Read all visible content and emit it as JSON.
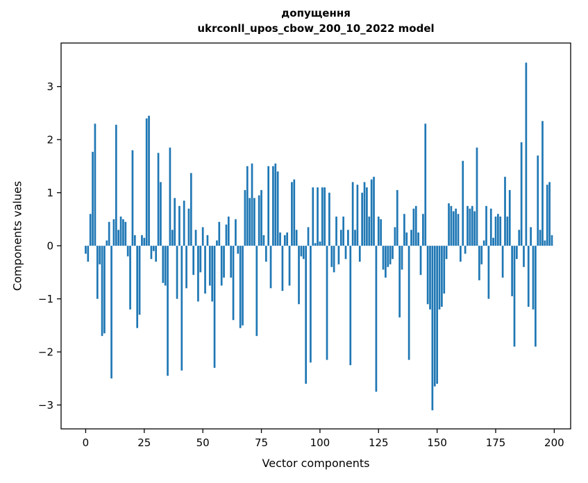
{
  "chart_data": {
    "type": "bar",
    "title": "допущення\nukrconll_upos_cbow_200_10_2022 model",
    "title_line1": "допущення",
    "title_line2": "ukrconll_upos_cbow_200_10_2022 model",
    "xlabel": "Vector components",
    "ylabel": "Components values",
    "bar_color": "#1f77b4",
    "axis_color": "#000000",
    "background_color": "#ffffff",
    "legend": "none",
    "grid": false,
    "xlim": [
      -10.5,
      207
    ],
    "ylim": [
      -3.45,
      3.82
    ],
    "xticks": [
      0,
      25,
      50,
      75,
      100,
      125,
      150,
      175,
      200
    ],
    "yticks": [
      -3,
      -2,
      -1,
      0,
      1,
      2,
      3
    ],
    "yticklabels": [
      "−3",
      "−2",
      "−1",
      "0",
      "1",
      "2",
      "3"
    ],
    "x_start": 0,
    "bar_width": 0.8,
    "values": [
      -0.15,
      -0.3,
      0.6,
      1.77,
      2.3,
      -1.0,
      -0.35,
      -1.7,
      -1.65,
      0.1,
      0.45,
      -2.5,
      0.5,
      2.28,
      0.3,
      0.55,
      0.5,
      0.45,
      -0.2,
      -1.2,
      1.8,
      0.2,
      -1.55,
      -1.3,
      0.2,
      0.15,
      2.4,
      2.45,
      -0.25,
      -0.1,
      -0.3,
      1.75,
      1.2,
      -0.7,
      -0.75,
      -2.45,
      1.85,
      0.3,
      0.9,
      -1.0,
      0.75,
      -2.35,
      0.85,
      -0.8,
      0.7,
      1.37,
      -0.55,
      0.3,
      -1.05,
      -0.5,
      0.35,
      -0.9,
      0.2,
      -0.75,
      -1.05,
      -2.3,
      0.1,
      0.45,
      -0.75,
      -0.6,
      0.4,
      0.55,
      -0.6,
      -1.4,
      0.5,
      -0.15,
      -1.55,
      -1.5,
      1.05,
      1.5,
      0.9,
      1.55,
      0.9,
      -1.7,
      0.95,
      1.05,
      0.2,
      -0.3,
      1.5,
      -0.8,
      1.5,
      1.55,
      1.4,
      0.25,
      -0.85,
      0.2,
      0.25,
      -0.75,
      1.2,
      1.25,
      0.3,
      -1.1,
      -0.2,
      -0.25,
      -2.6,
      0.35,
      -2.2,
      1.1,
      0.05,
      1.1,
      0.08,
      1.1,
      1.1,
      -2.15,
      1.0,
      -0.4,
      -0.5,
      0.55,
      -0.35,
      0.3,
      0.55,
      -0.25,
      0.3,
      -2.25,
      1.2,
      0.3,
      1.15,
      -0.3,
      1.0,
      1.2,
      1.1,
      0.55,
      1.25,
      1.3,
      -2.75,
      0.55,
      0.5,
      -0.45,
      -0.6,
      -0.4,
      -0.35,
      -0.25,
      0.35,
      1.05,
      -1.35,
      -0.45,
      0.6,
      0.25,
      -2.15,
      0.3,
      0.7,
      0.75,
      0.25,
      -0.55,
      0.6,
      2.3,
      -1.1,
      -1.2,
      -3.1,
      -2.65,
      -2.6,
      -1.2,
      -1.15,
      -0.9,
      -0.25,
      0.8,
      0.75,
      0.65,
      0.7,
      0.6,
      -0.3,
      1.6,
      -0.15,
      0.75,
      0.7,
      0.75,
      0.65,
      1.85,
      -0.65,
      -0.35,
      0.1,
      0.75,
      -1.0,
      0.7,
      0.15,
      0.55,
      0.6,
      0.55,
      -0.6,
      1.3,
      0.55,
      1.05,
      -0.95,
      -1.9,
      -0.25,
      0.3,
      1.95,
      -0.4,
      3.45,
      -1.15,
      0.35,
      -1.2,
      -1.9,
      1.7,
      0.3,
      2.35,
      0.1,
      1.15,
      1.2,
      0.2
    ]
  }
}
